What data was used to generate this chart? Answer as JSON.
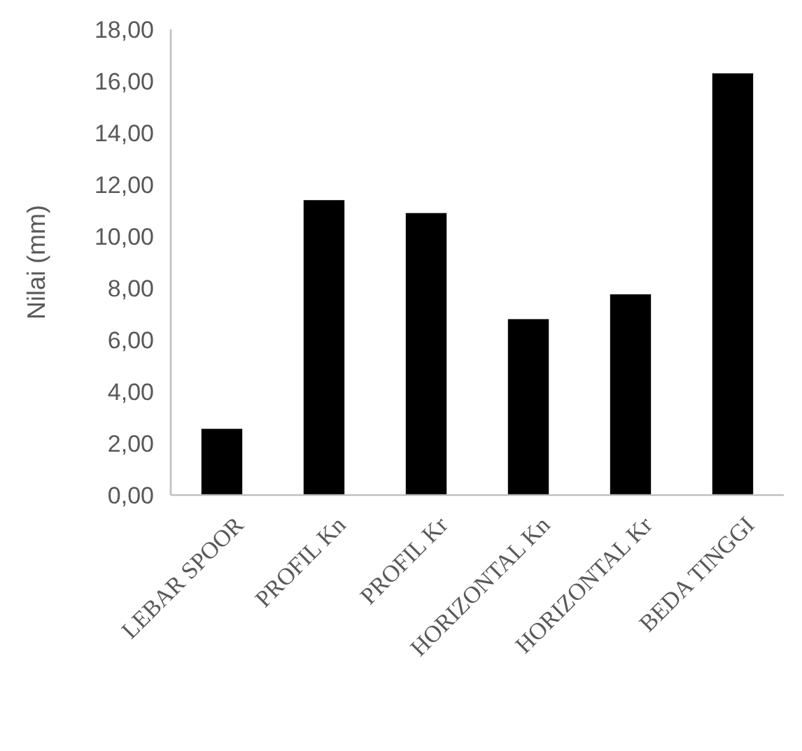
{
  "chart_data": {
    "type": "bar",
    "ylabel": "Nilai (mm)",
    "categories": [
      "LEBAR SPOOR",
      "PROFIL Kn",
      "PROFIL Kr",
      "HORIZONTAL Kn",
      "HORIZONTAL Kr",
      "BEDA TINGGI"
    ],
    "values": [
      2.56,
      11.4,
      10.9,
      6.8,
      7.76,
      16.3
    ],
    "color": "#000000",
    "ylim": [
      0,
      18
    ],
    "yticks": [
      {
        "value": 0,
        "label": "0,00"
      },
      {
        "value": 2,
        "label": "2,00"
      },
      {
        "value": 4,
        "label": "4,00"
      },
      {
        "value": 6,
        "label": "6,00"
      },
      {
        "value": 8,
        "label": "8,00"
      },
      {
        "value": 10,
        "label": "10,00"
      },
      {
        "value": 12,
        "label": "12,00"
      },
      {
        "value": 14,
        "label": "14,00"
      },
      {
        "value": 16,
        "label": "16,00"
      },
      {
        "value": 18,
        "label": "18,00"
      }
    ],
    "grid": false
  }
}
